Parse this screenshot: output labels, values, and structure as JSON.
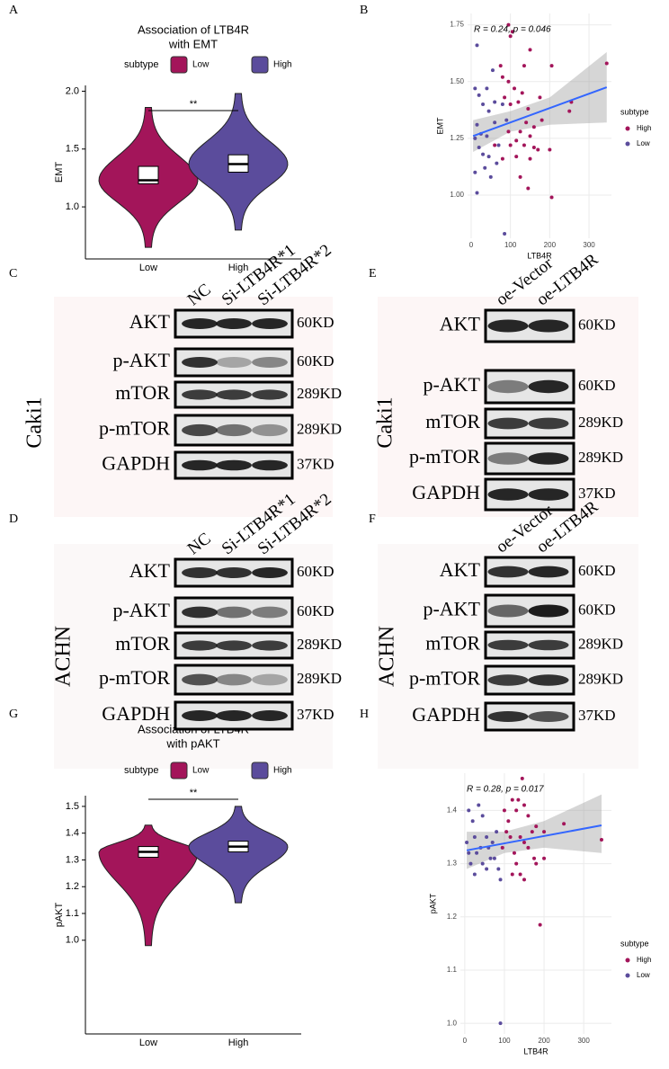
{
  "chart_data": [
    {
      "type": "violin",
      "panel": "A",
      "title": [
        "Association of LTB4R",
        "with EMT"
      ],
      "legend_title": "subtype",
      "ylabel": "EMT",
      "annotation": "**",
      "categories": [
        "Low",
        "High"
      ],
      "groups": [
        {
          "name": "Low",
          "color": "#a3155a",
          "min": 0.65,
          "q1": 1.2,
          "median": 1.23,
          "q3": 1.35,
          "max": 1.86
        },
        {
          "name": "High",
          "color": "#5b4c9c",
          "min": 0.8,
          "q1": 1.3,
          "median": 1.37,
          "q3": 1.45,
          "max": 1.98
        }
      ],
      "ylim": [
        0.55,
        2.05
      ],
      "yticks": [
        {
          "value": 1,
          "label": "1.0"
        },
        1.5,
        {
          "value": 2,
          "label": "2.0"
        }
      ]
    },
    {
      "type": "scatter",
      "panel": "B",
      "legend_title": "subtype",
      "xlabel": "LTB4R",
      "ylabel": "EMT",
      "annotation": "R = 0.24, p = 0.046",
      "xlim": [
        -9,
        357
      ],
      "xticks": [
        0,
        100,
        200,
        300
      ],
      "ylim": [
        0.81,
        1.8
      ],
      "yticks": [
        {
          "value": 1,
          "label": "1.00"
        },
        1.25,
        {
          "value": 1.5,
          "label": "1.50"
        },
        1.75
      ],
      "series": [
        {
          "name": "High",
          "color": "#a3155a",
          "x": [
            95,
            105,
            100,
            150,
            75,
            135,
            205,
            80,
            95,
            110,
            130,
            100,
            120,
            85,
            175,
            145,
            255,
            250,
            345,
            140,
            160,
            95,
            125,
            150,
            115,
            100,
            135,
            160,
            170,
            115,
            200,
            150,
            125,
            205,
            145,
            180,
            60,
            80
          ],
          "y": [
            1.75,
            1.72,
            1.7,
            1.64,
            1.57,
            1.57,
            1.57,
            1.52,
            1.5,
            1.47,
            1.45,
            1.4,
            1.41,
            1.43,
            1.43,
            1.38,
            1.41,
            1.37,
            1.58,
            1.32,
            1.3,
            1.28,
            1.28,
            1.26,
            1.24,
            1.22,
            1.22,
            1.21,
            1.2,
            1.17,
            1.2,
            1.16,
            1.08,
            0.99,
            1.03,
            1.33,
            1.22,
            1.16
          ]
        },
        {
          "name": "Low",
          "color": "#5b4c9c",
          "x": [
            15,
            10,
            40,
            20,
            55,
            80,
            30,
            45,
            60,
            15,
            10,
            25,
            40,
            70,
            20,
            30,
            45,
            10,
            35,
            50,
            65,
            15,
            85,
            90,
            60
          ],
          "y": [
            1.66,
            1.47,
            1.47,
            1.44,
            1.55,
            1.4,
            1.4,
            1.37,
            1.32,
            1.31,
            1.25,
            1.27,
            1.26,
            1.22,
            1.21,
            1.18,
            1.17,
            1.1,
            1.12,
            1.08,
            1.14,
            1.01,
            0.83,
            1.33,
            1.41
          ]
        }
      ],
      "fit": {
        "x": [
          5,
          345
        ],
        "y": [
          1.26,
          1.475
        ]
      },
      "band": {
        "x": [
          5,
          100,
          200,
          345
        ],
        "lower": [
          1.19,
          1.28,
          1.31,
          1.32
        ],
        "upper": [
          1.33,
          1.37,
          1.43,
          1.63
        ]
      }
    },
    {
      "type": "violin",
      "panel": "G",
      "title": [
        "Association of LTB4R",
        "with pAKT"
      ],
      "legend_title": "subtype",
      "ylabel": "pAKT",
      "annotation": "**",
      "categories": [
        "Low",
        "High"
      ],
      "groups": [
        {
          "name": "Low",
          "color": "#a3155a",
          "min": 0.98,
          "q1": 1.31,
          "median": 1.33,
          "q3": 1.35,
          "max": 1.43
        },
        {
          "name": "High",
          "color": "#5b4c9c",
          "min": 1.14,
          "q1": 1.33,
          "median": 1.35,
          "q3": 1.37,
          "max": 1.5
        }
      ],
      "ylim": [
        0.65,
        1.54
      ],
      "yticks": [
        {
          "value": 1,
          "label": "1.0"
        },
        1.1,
        1.2,
        1.3,
        1.4,
        1.5
      ]
    },
    {
      "type": "scatter",
      "panel": "H",
      "legend_title": "subtype",
      "xlabel": "LTB4R",
      "ylabel": "pAKT",
      "annotation": "R = 0.28, p = 0.017",
      "xlim": [
        -11,
        370
      ],
      "xticks": [
        0,
        100,
        200,
        300
      ],
      "ylim": [
        0.98,
        1.47
      ],
      "yticks": [
        {
          "value": 1,
          "label": "1.0"
        },
        1.1,
        1.2,
        1.3,
        1.4
      ],
      "series": [
        {
          "name": "High",
          "color": "#a3155a",
          "x": [
            145,
            120,
            135,
            150,
            100,
            130,
            160,
            180,
            200,
            250,
            110,
            170,
            140,
            150,
            160,
            115,
            125,
            105,
            175,
            200,
            130,
            180,
            120,
            140,
            150,
            345,
            190,
            95
          ],
          "y": [
            1.46,
            1.42,
            1.42,
            1.41,
            1.4,
            1.4,
            1.39,
            1.37,
            1.36,
            1.375,
            1.38,
            1.36,
            1.35,
            1.34,
            1.33,
            1.35,
            1.32,
            1.36,
            1.31,
            1.31,
            1.3,
            1.3,
            1.28,
            1.28,
            1.27,
            1.345,
            1.185,
            1.33
          ]
        },
        {
          "name": "Low",
          "color": "#5b4c9c",
          "x": [
            10,
            20,
            35,
            45,
            55,
            25,
            10,
            30,
            60,
            15,
            45,
            75,
            85,
            25,
            55,
            90,
            70,
            80,
            40,
            90,
            5,
            65
          ],
          "y": [
            1.4,
            1.38,
            1.41,
            1.39,
            1.35,
            1.35,
            1.32,
            1.32,
            1.33,
            1.3,
            1.3,
            1.31,
            1.29,
            1.28,
            1.29,
            1.27,
            1.34,
            1.36,
            1.33,
            1.0,
            1.34,
            1.31
          ]
        }
      ],
      "fit": {
        "x": [
          5,
          345
        ],
        "y": [
          1.325,
          1.372
        ]
      },
      "band": {
        "x": [
          5,
          100,
          200,
          345
        ],
        "lower": [
          1.29,
          1.32,
          1.33,
          1.32
        ],
        "upper": [
          1.36,
          1.36,
          1.38,
          1.43
        ]
      }
    }
  ],
  "blots": [
    {
      "panel": "C",
      "cell_line": "Caki1",
      "lanes": [
        "NC",
        "Si-LTB4R*1",
        "Si-LTB4R*2"
      ],
      "rows": [
        {
          "protein": "AKT",
          "size": "60KD"
        },
        {
          "protein": "p-AKT",
          "size": "60KD"
        },
        {
          "protein": "mTOR",
          "size": "289KD"
        },
        {
          "protein": "p-mTOR",
          "size": "289KD"
        },
        {
          "protein": "GAPDH",
          "size": "37KD"
        }
      ]
    },
    {
      "panel": "E",
      "cell_line": "Caki1",
      "lanes": [
        "oe-Vector",
        "oe-LTB4R"
      ],
      "rows": [
        {
          "protein": "AKT",
          "size": "60KD"
        },
        {
          "protein": "p-AKT",
          "size": "60KD"
        },
        {
          "protein": "mTOR",
          "size": "289KD"
        },
        {
          "protein": "p-mTOR",
          "size": "289KD"
        },
        {
          "protein": "GAPDH",
          "size": "37KD"
        }
      ]
    },
    {
      "panel": "D",
      "cell_line": "ACHN",
      "lanes": [
        "NC",
        "Si-LTB4R*1",
        "Si-LTB4R*2"
      ],
      "rows": [
        {
          "protein": "AKT",
          "size": "60KD"
        },
        {
          "protein": "p-AKT",
          "size": "60KD"
        },
        {
          "protein": "mTOR",
          "size": "289KD"
        },
        {
          "protein": "p-mTOR",
          "size": "289KD"
        },
        {
          "protein": "GAPDH",
          "size": "37KD"
        }
      ]
    },
    {
      "panel": "F",
      "cell_line": "ACHN",
      "lanes": [
        "oe-Vector",
        "oe-LTB4R"
      ],
      "rows": [
        {
          "protein": "AKT",
          "size": "60KD"
        },
        {
          "protein": "p-AKT",
          "size": "60KD"
        },
        {
          "protein": "mTOR",
          "size": "289KD"
        },
        {
          "protein": "p-mTOR",
          "size": "289KD"
        },
        {
          "protein": "GAPDH",
          "size": "37KD"
        }
      ]
    }
  ]
}
